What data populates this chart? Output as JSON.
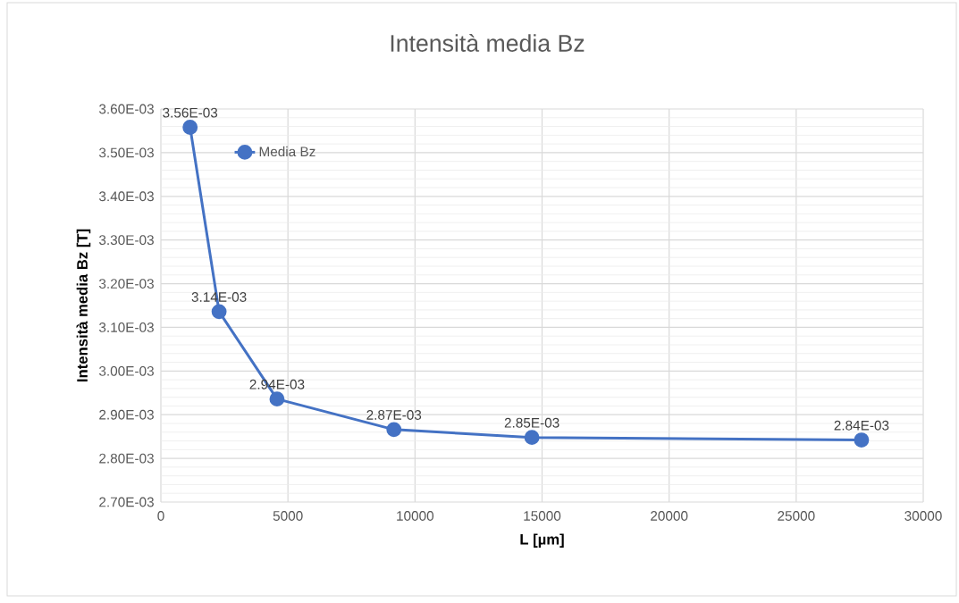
{
  "chart_data": {
    "type": "line",
    "title": "Intensità media Bz",
    "xlabel": "L [µm]",
    "ylabel": "Intensità media Bz [T]",
    "x": [
      1150,
      2290,
      4570,
      9170,
      14600,
      27570
    ],
    "series": [
      {
        "name": "Media Bz",
        "color": "#4472c4",
        "values": [
          0.003558,
          0.003136,
          0.002936,
          0.002866,
          0.002848,
          0.002842
        ],
        "value_labels": [
          "3.56E-03",
          "3.14E-03",
          "2.94E-03",
          "2.87E-03",
          "2.85E-03",
          "2.84E-03"
        ]
      }
    ],
    "xlim": [
      0,
      30000
    ],
    "xticks": [
      0,
      5000,
      10000,
      15000,
      20000,
      25000,
      30000
    ],
    "ylim": [
      0.0027,
      0.0036
    ],
    "yticks": [
      {
        "value": 0.0027,
        "label": "2.70E-03"
      },
      {
        "value": 0.0028,
        "label": "2.80E-03"
      },
      {
        "value": 0.0029,
        "label": "2.90E-03"
      },
      {
        "value": 0.003,
        "label": "3.00E-03"
      },
      {
        "value": 0.0031,
        "label": "3.10E-03"
      },
      {
        "value": 0.0032,
        "label": "3.20E-03"
      },
      {
        "value": 0.0033,
        "label": "3.30E-03"
      },
      {
        "value": 0.0034,
        "label": "3.40E-03"
      },
      {
        "value": 0.0035,
        "label": "3.50E-03"
      },
      {
        "value": 0.0036,
        "label": "3.60E-03"
      }
    ],
    "grid": true,
    "legend": "top left",
    "marker": "circle",
    "line_style": "solid"
  }
}
